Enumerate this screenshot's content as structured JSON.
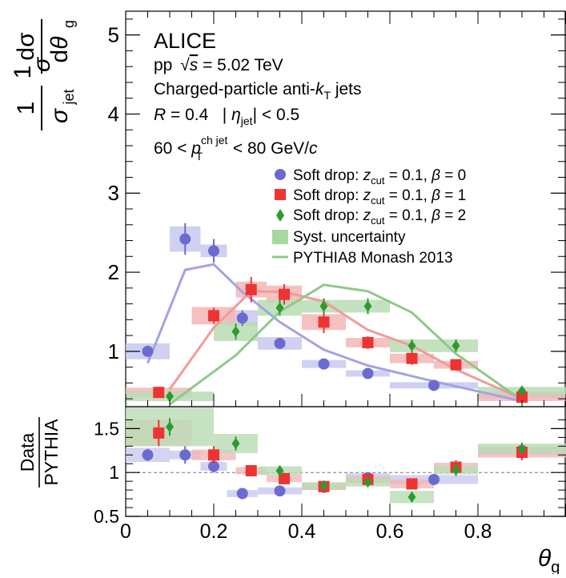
{
  "colors": {
    "beta0": "#6b6bcf",
    "beta1": "#ee3333",
    "beta2": "#2e9a2e",
    "beta0_band": "#c8c8f0",
    "beta1_band": "#f4b6b6",
    "beta2_band": "#b9dcb4",
    "pythia0": "#a3a3e2",
    "pythia1": "#f29a9a",
    "pythia2": "#8fc98a",
    "syst_legend": "#a8d8a0"
  },
  "chart_data": {
    "type": "scatter",
    "texts": {
      "experiment": "ALICE",
      "line_pp": "pp",
      "line_sqrts": "s",
      "line_energy": "= 5.02 TeV",
      "jets_prefix": "Charged-particle anti-",
      "jets_k": "k",
      "jets_ksub": "T",
      "jets_suffix": " jets",
      "r_label": "R",
      "r_value": " = 0.4   | ",
      "eta": "η",
      "eta_sub": "jet",
      "eta_cut": "| < 0.5",
      "pt_low": "60 < ",
      "pt_p": "p",
      "pt_sup": "ch jet",
      "pt_sub": "T",
      "pt_high": " < 80 GeV/",
      "pt_c": "c",
      "x_axis_label": "θ",
      "x_axis_sub": "g",
      "y_top_num": "1",
      "y_top_den": "σ",
      "y_top_den_sub": "jet",
      "y_top_dnum": "dσ",
      "y_top_dden": "dθ",
      "y_top_dden_sub": "g",
      "y_bottom_num": "Data",
      "y_bottom_den": "PYTHIA"
    },
    "legend": [
      {
        "prefix": "Soft drop: ",
        "z": "z",
        "zsub": "cut",
        "mid": " = 0.1, ",
        "beta": "β",
        "val": " = 0"
      },
      {
        "prefix": "Soft drop: ",
        "z": "z",
        "zsub": "cut",
        "mid": " = 0.1, ",
        "beta": "β",
        "val": " = 1"
      },
      {
        "prefix": "Soft drop: ",
        "z": "z",
        "zsub": "cut",
        "mid": " = 0.1, ",
        "beta": "β",
        "val": " = 2"
      },
      {
        "text": "Syst. uncertainty"
      },
      {
        "text": "PYTHIA8 Monash 2013"
      }
    ],
    "top": {
      "xlim": [
        0,
        1
      ],
      "ylim": [
        0.3,
        5.3
      ],
      "yticks": [
        "1",
        "2",
        "3",
        "4",
        "5"
      ],
      "series": [
        {
          "key": "beta0",
          "x": [
            0.05,
            0.135,
            0.2,
            0.265,
            0.35,
            0.45,
            0.55,
            0.7,
            0.9
          ],
          "y": [
            1.0,
            2.42,
            2.27,
            1.42,
            1.1,
            0.84,
            0.72,
            0.57,
            0.45
          ],
          "xerr": [
            0.05,
            0.035,
            0.03,
            0.035,
            0.05,
            0.05,
            0.05,
            0.1,
            0.1
          ],
          "yerr": [
            0.06,
            0.2,
            0.15,
            0.1,
            0.06,
            0.04,
            0.04,
            0.03,
            0.03
          ],
          "syst": [
            0.1,
            0.16,
            0.08,
            0.1,
            0.08,
            0.05,
            0.04,
            0.04,
            0.04
          ]
        },
        {
          "key": "beta1",
          "x": [
            0.075,
            0.2,
            0.285,
            0.36,
            0.45,
            0.55,
            0.65,
            0.75,
            0.9
          ],
          "y": [
            0.48,
            1.45,
            1.78,
            1.72,
            1.37,
            1.11,
            0.91,
            0.83,
            0.42
          ],
          "xerr": [
            0.075,
            0.05,
            0.035,
            0.04,
            0.05,
            0.05,
            0.05,
            0.05,
            0.1
          ],
          "yerr": [
            0.04,
            0.1,
            0.16,
            0.13,
            0.14,
            0.08,
            0.08,
            0.06,
            0.03
          ],
          "syst": [
            0.06,
            0.11,
            0.1,
            0.11,
            0.1,
            0.06,
            0.06,
            0.05,
            0.05
          ]
        },
        {
          "key": "beta2",
          "x": [
            0.1,
            0.25,
            0.35,
            0.45,
            0.55,
            0.65,
            0.75,
            0.9
          ],
          "y": [
            0.43,
            1.25,
            1.55,
            1.57,
            1.57,
            1.07,
            1.07,
            0.5
          ],
          "xerr": [
            0.1,
            0.05,
            0.05,
            0.05,
            0.05,
            0.05,
            0.05,
            0.1
          ],
          "yerr": [
            0.04,
            0.1,
            0.1,
            0.1,
            0.1,
            0.08,
            0.08,
            0.04
          ],
          "syst": [
            0.06,
            0.12,
            0.1,
            0.08,
            0.08,
            0.08,
            0.08,
            0.05
          ]
        }
      ],
      "pythia": [
        {
          "key": "beta0",
          "x": [
            0.05,
            0.135,
            0.2,
            0.265,
            0.35,
            0.45,
            0.55,
            0.7,
            0.9
          ],
          "y": [
            0.85,
            2.03,
            2.1,
            1.75,
            1.37,
            1.02,
            0.82,
            0.62,
            0.37
          ]
        },
        {
          "key": "beta1",
          "x": [
            0.1,
            0.2,
            0.285,
            0.36,
            0.45,
            0.55,
            0.65,
            0.75,
            0.9
          ],
          "y": [
            0.52,
            1.3,
            1.76,
            1.75,
            1.63,
            1.27,
            1.07,
            0.77,
            0.4
          ]
        },
        {
          "key": "beta2",
          "x": [
            0.1,
            0.25,
            0.35,
            0.45,
            0.55,
            0.65,
            0.75,
            0.9
          ],
          "y": [
            0.33,
            0.95,
            1.5,
            1.84,
            1.76,
            1.49,
            0.97,
            0.38
          ]
        }
      ]
    },
    "ratio": {
      "xlim": [
        0,
        1
      ],
      "ylim": [
        0.5,
        1.75
      ],
      "yticks": [
        "0.5",
        "1",
        "1.5"
      ],
      "xticks": [
        "0",
        "0.2",
        "0.4",
        "0.6",
        "0.8"
      ],
      "reference_line": 1,
      "series": [
        {
          "key": "beta0",
          "x": [
            0.05,
            0.135,
            0.2,
            0.265,
            0.35,
            0.45,
            0.55,
            0.7,
            0.9
          ],
          "y": [
            1.2,
            1.2,
            1.07,
            0.76,
            0.79,
            0.83,
            0.94,
            0.92,
            1.25
          ],
          "yerr": [
            0.07,
            0.1,
            0.07,
            0.04,
            0.04,
            0.04,
            0.05,
            0.04,
            0.09
          ],
          "syst": [
            0.08,
            0.05,
            0.05,
            0.04,
            0.04,
            0.03,
            0.05,
            0.05,
            0.05
          ]
        },
        {
          "key": "beta1",
          "x": [
            0.075,
            0.2,
            0.285,
            0.36,
            0.45,
            0.55,
            0.65,
            0.75,
            0.9
          ],
          "y": [
            1.45,
            1.2,
            1.02,
            0.93,
            0.84,
            0.92,
            0.87,
            1.06,
            1.23
          ],
          "yerr": [
            0.15,
            0.1,
            0.05,
            0.05,
            0.05,
            0.05,
            0.06,
            0.08,
            0.09
          ],
          "syst": [
            0.15,
            0.06,
            0.04,
            0.04,
            0.04,
            0.04,
            0.05,
            0.05,
            0.06
          ]
        },
        {
          "key": "beta2",
          "x": [
            0.1,
            0.25,
            0.35,
            0.45,
            0.55,
            0.65,
            0.75,
            0.9
          ],
          "y": [
            1.52,
            1.33,
            1.02,
            0.85,
            0.89,
            0.72,
            1.03,
            1.27
          ],
          "yerr": [
            0.1,
            0.08,
            0.06,
            0.05,
            0.05,
            0.06,
            0.07,
            0.06
          ],
          "syst": [
            0.22,
            0.11,
            0.05,
            0.04,
            0.05,
            0.07,
            0.05,
            0.06
          ]
        }
      ]
    }
  }
}
